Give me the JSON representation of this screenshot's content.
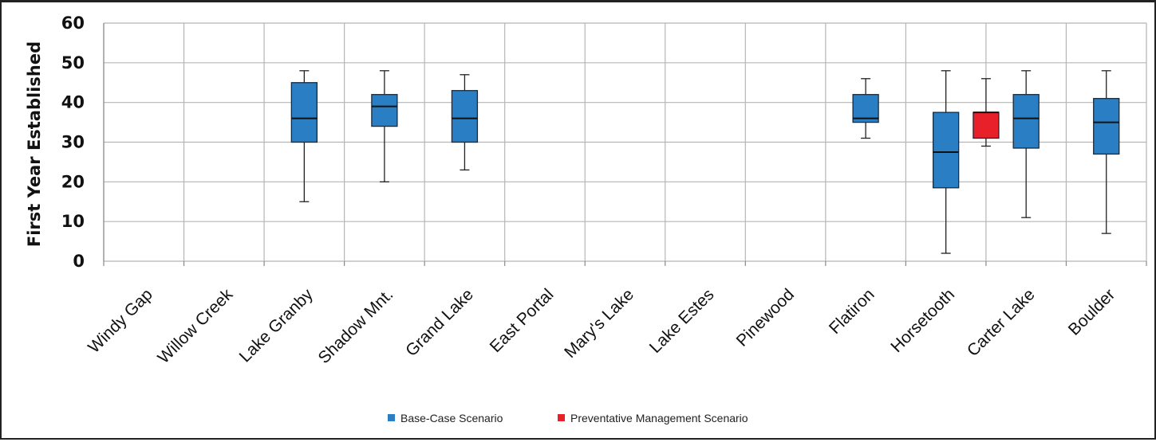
{
  "chart_data": {
    "type": "boxplot",
    "ylabel": "First Year Established",
    "ylim": [
      0,
      60
    ],
    "yticks": [
      0,
      10,
      20,
      30,
      40,
      50,
      60
    ],
    "grid": true,
    "legend_position": "bottom",
    "categories": [
      "Windy Gap",
      "Willow Creek",
      "Lake Granby",
      "Shadow Mnt.",
      "Grand Lake",
      "East Portal",
      "Mary's Lake",
      "Lake Estes",
      "Pinewood",
      "Flatiron",
      "Horsetooth",
      "Carter Lake",
      "Boulder"
    ],
    "series": [
      {
        "name": "Base-Case Scenario",
        "color": "#2a7fc4",
        "boxes": [
          {
            "category": "Lake Granby",
            "min": 15,
            "q1": 30,
            "median": 36,
            "q3": 45,
            "max": 48
          },
          {
            "category": "Shadow Mnt.",
            "min": 20,
            "q1": 34,
            "median": 39,
            "q3": 42,
            "max": 48
          },
          {
            "category": "Grand Lake",
            "min": 23,
            "q1": 30,
            "median": 36,
            "q3": 43,
            "max": 47
          },
          {
            "category": "Flatiron",
            "min": 31,
            "q1": 35,
            "median": 36,
            "q3": 42,
            "max": 46
          },
          {
            "category": "Horsetooth",
            "min": 2,
            "q1": 18.5,
            "median": 27.5,
            "q3": 37.5,
            "max": 48
          },
          {
            "category": "Carter Lake",
            "min": 11,
            "q1": 28.5,
            "median": 36,
            "q3": 42,
            "max": 48
          },
          {
            "category": "Boulder",
            "min": 7,
            "q1": 27,
            "median": 35,
            "q3": 41,
            "max": 48
          }
        ]
      },
      {
        "name": "Preventative Management Scenario",
        "color": "#e8202a",
        "boxes": [
          {
            "category": "Horsetooth",
            "min": 29,
            "q1": 31,
            "median": 37.5,
            "q3": 37.5,
            "max": 46
          }
        ]
      }
    ]
  }
}
